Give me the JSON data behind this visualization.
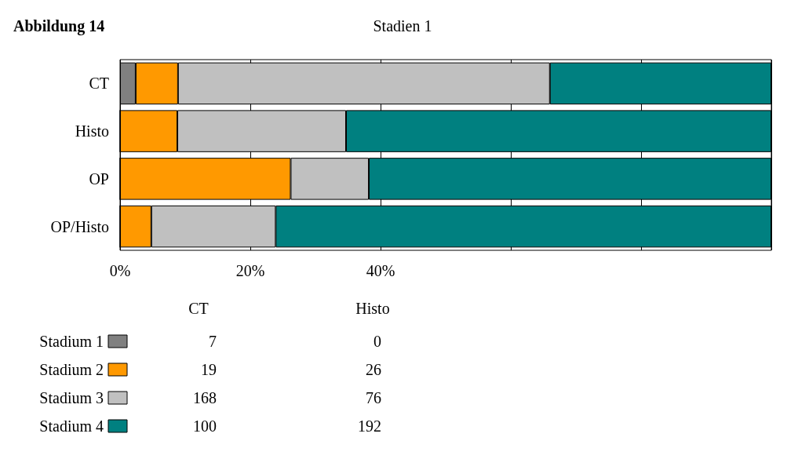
{
  "chart_data": {
    "type": "bar",
    "orientation": "horizontal",
    "stacked": true,
    "title": "Abbildung 14",
    "subtitle": "Stadien 1",
    "categories": [
      "CT",
      "Histo",
      "OP",
      "OP/Histo"
    ],
    "series": [
      {
        "name": "Stadium 1",
        "color": "#808080",
        "values": [
          2.4,
          0,
          0,
          0
        ]
      },
      {
        "name": "Stadium 2",
        "color": "#ff9900",
        "values": [
          6.5,
          8.8,
          26.2,
          4.8
        ]
      },
      {
        "name": "Stadium 3",
        "color": "#c0c0c0",
        "values": [
          57.1,
          25.9,
          12.0,
          19.1
        ]
      },
      {
        "name": "Stadium 4",
        "color": "#008080",
        "values": [
          34.0,
          65.3,
          61.8,
          76.1
        ]
      }
    ],
    "annotations": [
      "7",
      "0",
      "19",
      "26",
      "168",
      "76",
      "100",
      "192"
    ],
    "xlim": [
      0,
      100
    ],
    "xticks": [
      {
        "value": 0,
        "label": "0%"
      },
      {
        "value": 20,
        "label": "20%"
      },
      {
        "value": 40,
        "label": "40%"
      },
      {
        "value": 60,
        "label": null
      },
      {
        "value": 80,
        "label": null
      },
      {
        "value": 100,
        "label": null
      }
    ],
    "grid": "x",
    "legend": "bottom"
  }
}
